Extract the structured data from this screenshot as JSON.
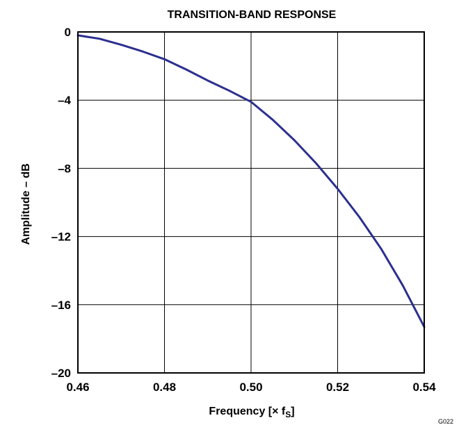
{
  "chart_data": {
    "type": "line",
    "title": "TRANSITION-BAND RESPONSE",
    "xlabel_main": "Frequency [× f",
    "xlabel_sub": "S",
    "xlabel_end": "]",
    "ylabel": "Amplitude – dB",
    "xlim": [
      0.46,
      0.54
    ],
    "ylim": [
      -20,
      0
    ],
    "x_ticks": [
      0.46,
      0.48,
      0.5,
      0.52,
      0.54
    ],
    "x_tick_labels": [
      "0.46",
      "0.48",
      "0.50",
      "0.52",
      "0.54"
    ],
    "y_ticks": [
      0,
      -4,
      -8,
      -12,
      -16,
      -20
    ],
    "y_tick_labels": [
      "0",
      "–4",
      "–8",
      "–12",
      "–16",
      "–20"
    ],
    "grid": true,
    "series": [
      {
        "color": "#2b2f8f",
        "x": [
          0.46,
          0.465,
          0.47,
          0.475,
          0.48,
          0.485,
          0.49,
          0.495,
          0.5,
          0.505,
          0.51,
          0.515,
          0.52,
          0.525,
          0.53,
          0.535,
          0.54
        ],
        "y": [
          -0.2,
          -0.4,
          -0.75,
          -1.15,
          -1.6,
          -2.2,
          -2.85,
          -3.45,
          -4.1,
          -5.15,
          -6.35,
          -7.7,
          -9.2,
          -10.85,
          -12.7,
          -14.85,
          -17.3
        ]
      }
    ]
  },
  "figure_id": "G022"
}
